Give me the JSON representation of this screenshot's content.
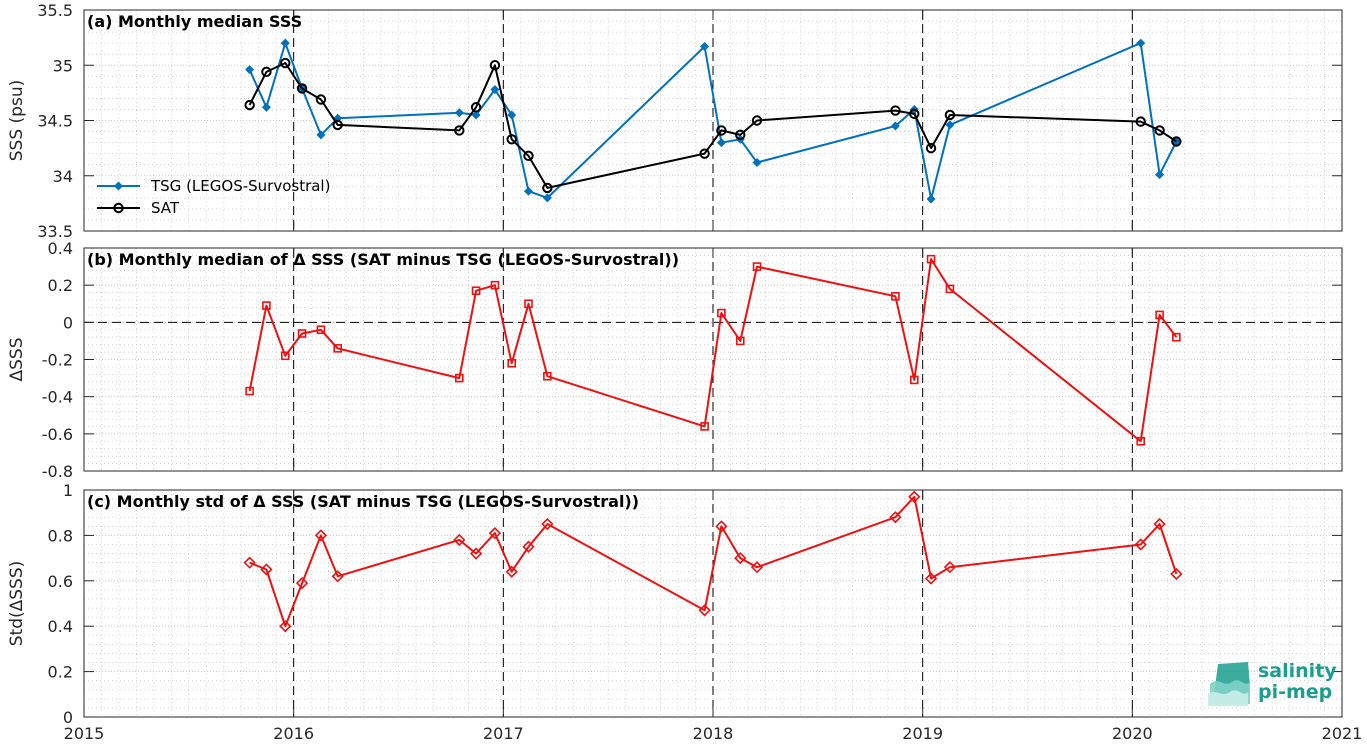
{
  "colors": {
    "tsg": "#0072BD",
    "sat": "#000000",
    "delta": "#ee1111",
    "logo": "#1a9e8f"
  },
  "logo": {
    "line1": "salinity",
    "line2": "pi-mep"
  },
  "chart_data": [
    {
      "type": "line",
      "title": "(a) Monthly median SSS",
      "ylabel": "SSS (psu)",
      "xlim": [
        2015,
        2021
      ],
      "ylim": [
        33.5,
        35.5
      ],
      "yticks": [
        33.5,
        34,
        34.5,
        35,
        35.5
      ],
      "ytick_labels": [
        "33.5",
        "34",
        "34.5",
        "35",
        "35.5"
      ],
      "grid": true,
      "legend": "lower-left",
      "series": [
        {
          "name": "TSG (LEGOS-Survostral)",
          "marker": "filled-diamond",
          "x": [
            2015.79,
            2015.87,
            2015.96,
            2016.04,
            2016.13,
            2016.21,
            2016.79,
            2016.87,
            2016.96,
            2017.04,
            2017.12,
            2017.21,
            2017.96,
            2018.04,
            2018.13,
            2018.21,
            2018.87,
            2018.96,
            2019.04,
            2019.13,
            2020.04,
            2020.13,
            2020.21
          ],
          "values": [
            34.96,
            34.62,
            35.2,
            34.79,
            34.37,
            34.52,
            34.57,
            34.55,
            34.78,
            34.55,
            33.86,
            33.8,
            35.17,
            34.3,
            34.33,
            34.12,
            34.45,
            34.6,
            33.79,
            34.46,
            35.2,
            34.01,
            34.31
          ]
        },
        {
          "name": "SAT",
          "marker": "open-circle",
          "x": [
            2015.79,
            2015.87,
            2015.96,
            2016.04,
            2016.13,
            2016.21,
            2016.79,
            2016.87,
            2016.96,
            2017.04,
            2017.12,
            2017.21,
            2017.96,
            2018.04,
            2018.13,
            2018.21,
            2018.87,
            2018.96,
            2019.04,
            2019.13,
            2020.04,
            2020.13,
            2020.21
          ],
          "values": [
            34.64,
            34.94,
            35.02,
            34.79,
            34.69,
            34.46,
            34.41,
            34.62,
            35.0,
            34.33,
            34.18,
            33.89,
            34.2,
            34.41,
            34.37,
            34.5,
            34.59,
            34.56,
            34.25,
            34.55,
            34.49,
            34.41,
            34.31
          ]
        }
      ]
    },
    {
      "type": "line",
      "title": "(b) Monthly median of Δ SSS (SAT minus TSG (LEGOS-Survostral))",
      "ylabel": "ΔSSS",
      "xlim": [
        2015,
        2021
      ],
      "ylim": [
        -0.8,
        0.4
      ],
      "yticks": [
        -0.8,
        -0.6,
        -0.4,
        -0.2,
        0,
        0.2,
        0.4
      ],
      "ytick_labels": [
        "-0.8",
        "-0.6",
        "-0.4",
        "-0.2",
        "0",
        "0.2",
        "0.4"
      ],
      "grid": true,
      "zero_line": true,
      "series": [
        {
          "marker": "open-square",
          "x": [
            2015.79,
            2015.87,
            2015.96,
            2016.04,
            2016.13,
            2016.21,
            2016.79,
            2016.87,
            2016.96,
            2017.04,
            2017.12,
            2017.21,
            2017.96,
            2018.04,
            2018.13,
            2018.21,
            2018.87,
            2018.96,
            2019.04,
            2019.13,
            2020.04,
            2020.13,
            2020.21
          ],
          "values": [
            -0.37,
            0.09,
            -0.18,
            -0.06,
            -0.04,
            -0.14,
            -0.3,
            0.17,
            0.2,
            -0.22,
            0.1,
            -0.29,
            -0.56,
            0.05,
            -0.1,
            0.3,
            0.14,
            -0.31,
            0.34,
            0.18,
            -0.64,
            0.04,
            -0.08
          ]
        }
      ]
    },
    {
      "type": "line",
      "title": "(c) Monthly std of Δ SSS (SAT minus TSG (LEGOS-Survostral))",
      "ylabel": "Std(ΔSSS)",
      "xlim": [
        2015,
        2021
      ],
      "ylim": [
        0,
        1
      ],
      "yticks": [
        0,
        0.2,
        0.4,
        0.6,
        0.8,
        1
      ],
      "ytick_labels": [
        "0",
        "0.2",
        "0.4",
        "0.6",
        "0.8",
        "1"
      ],
      "xticks": [
        2015,
        2016,
        2017,
        2018,
        2019,
        2020,
        2021
      ],
      "xtick_labels": [
        "2015",
        "2016",
        "2017",
        "2018",
        "2019",
        "2020",
        "2021"
      ],
      "grid": true,
      "series": [
        {
          "marker": "open-diamond",
          "x": [
            2015.79,
            2015.87,
            2015.96,
            2016.04,
            2016.13,
            2016.21,
            2016.79,
            2016.87,
            2016.96,
            2017.04,
            2017.12,
            2017.21,
            2017.96,
            2018.04,
            2018.13,
            2018.21,
            2018.87,
            2018.96,
            2019.04,
            2019.13,
            2020.04,
            2020.13,
            2020.21
          ],
          "values": [
            0.68,
            0.65,
            0.4,
            0.59,
            0.8,
            0.62,
            0.78,
            0.72,
            0.81,
            0.64,
            0.75,
            0.85,
            0.47,
            0.84,
            0.7,
            0.66,
            0.88,
            0.97,
            0.61,
            0.66,
            0.76,
            0.85,
            0.63
          ]
        }
      ]
    }
  ]
}
